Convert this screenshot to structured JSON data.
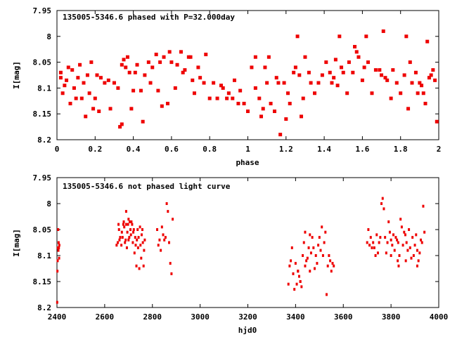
{
  "colors": {
    "points": "#ee0000",
    "axes": "#000000"
  },
  "chart_data": [
    {
      "type": "scatter",
      "title": "135005-5346.6 phased with P=32.000day",
      "xlabel": "phase",
      "ylabel": "I[mag]",
      "xlim": [
        0,
        2
      ],
      "ylim": [
        8.2,
        7.95
      ],
      "y_inverted": true,
      "grid": false,
      "x_ticks": [
        "0",
        "0.2",
        "0.4",
        "0.6",
        "0.8",
        "1",
        "1.2",
        "1.4",
        "1.6",
        "1.8",
        "2"
      ],
      "y_ticks": [
        "7.95",
        "8",
        "8.05",
        "8.1",
        "8.15",
        "8.2"
      ],
      "points": [
        [
          0.02,
          8.07
        ],
        [
          0.02,
          8.08
        ],
        [
          0.03,
          8.11
        ],
        [
          0.04,
          8.095
        ],
        [
          0.05,
          8.085
        ],
        [
          0.06,
          8.06
        ],
        [
          0.07,
          8.13
        ],
        [
          0.08,
          8.065
        ],
        [
          0.09,
          8.1
        ],
        [
          0.1,
          8.12
        ],
        [
          0.11,
          8.08
        ],
        [
          0.12,
          8.055
        ],
        [
          0.13,
          8.12
        ],
        [
          0.14,
          8.09
        ],
        [
          0.15,
          8.155
        ],
        [
          0.16,
          8.075
        ],
        [
          0.17,
          8.11
        ],
        [
          0.18,
          8.05
        ],
        [
          0.19,
          8.14
        ],
        [
          0.2,
          8.12
        ],
        [
          0.21,
          8.075
        ],
        [
          0.22,
          8.145
        ],
        [
          0.23,
          8.08
        ],
        [
          0.25,
          8.09
        ],
        [
          0.27,
          8.085
        ],
        [
          0.28,
          8.14
        ],
        [
          0.3,
          8.09
        ],
        [
          0.32,
          8.1
        ],
        [
          0.33,
          8.175
        ],
        [
          0.34,
          8.055
        ],
        [
          0.34,
          8.17
        ],
        [
          0.35,
          8.045
        ],
        [
          0.36,
          8.06
        ],
        [
          0.37,
          8.04
        ],
        [
          0.38,
          8.07
        ],
        [
          0.39,
          8.14
        ],
        [
          0.4,
          8.105
        ],
        [
          0.41,
          8.07
        ],
        [
          0.42,
          8.055
        ],
        [
          0.44,
          8.105
        ],
        [
          0.45,
          8.165
        ],
        [
          0.46,
          8.075
        ],
        [
          0.48,
          8.05
        ],
        [
          0.49,
          8.09
        ],
        [
          0.5,
          8.06
        ],
        [
          0.52,
          8.035
        ],
        [
          0.53,
          8.105
        ],
        [
          0.54,
          8.05
        ],
        [
          0.55,
          8.135
        ],
        [
          0.56,
          8.04
        ],
        [
          0.58,
          8.13
        ],
        [
          0.59,
          8.03
        ],
        [
          0.6,
          8.05
        ],
        [
          0.62,
          8.1
        ],
        [
          0.63,
          8.055
        ],
        [
          0.65,
          8.03
        ],
        [
          0.66,
          8.07
        ],
        [
          0.67,
          8.065
        ],
        [
          0.69,
          8.04
        ],
        [
          0.7,
          8.04
        ],
        [
          0.71,
          8.085
        ],
        [
          0.72,
          8.11
        ],
        [
          0.74,
          8.06
        ],
        [
          0.75,
          8.08
        ],
        [
          0.77,
          8.09
        ],
        [
          0.78,
          8.035
        ],
        [
          0.8,
          8.12
        ],
        [
          0.82,
          8.09
        ],
        [
          0.84,
          8.12
        ],
        [
          0.86,
          8.095
        ],
        [
          0.87,
          8.1
        ],
        [
          0.89,
          8.12
        ],
        [
          0.9,
          8.11
        ],
        [
          0.92,
          8.12
        ],
        [
          0.93,
          8.085
        ],
        [
          0.95,
          8.13
        ],
        [
          0.96,
          8.105
        ],
        [
          0.98,
          8.13
        ],
        [
          1.0,
          8.145
        ],
        [
          1.02,
          8.06
        ],
        [
          1.04,
          8.1
        ],
        [
          1.04,
          8.04
        ],
        [
          1.06,
          8.12
        ],
        [
          1.07,
          8.155
        ],
        [
          1.08,
          8.14
        ],
        [
          1.09,
          8.06
        ],
        [
          1.1,
          8.09
        ],
        [
          1.11,
          8.04
        ],
        [
          1.12,
          8.13
        ],
        [
          1.14,
          8.145
        ],
        [
          1.15,
          8.08
        ],
        [
          1.16,
          8.09
        ],
        [
          1.17,
          8.19
        ],
        [
          1.19,
          8.09
        ],
        [
          1.2,
          8.16
        ],
        [
          1.21,
          8.11
        ],
        [
          1.22,
          8.13
        ],
        [
          1.24,
          8.07
        ],
        [
          1.25,
          8.06
        ],
        [
          1.26,
          8.0
        ],
        [
          1.27,
          8.075
        ],
        [
          1.28,
          8.155
        ],
        [
          1.29,
          8.12
        ],
        [
          1.3,
          8.04
        ],
        [
          1.32,
          8.07
        ],
        [
          1.33,
          8.09
        ],
        [
          1.35,
          8.11
        ],
        [
          1.37,
          8.09
        ],
        [
          1.39,
          8.075
        ],
        [
          1.41,
          8.05
        ],
        [
          1.43,
          8.07
        ],
        [
          1.44,
          8.09
        ],
        [
          1.45,
          8.08
        ],
        [
          1.46,
          8.045
        ],
        [
          1.47,
          8.095
        ],
        [
          1.48,
          8.0
        ],
        [
          1.49,
          8.06
        ],
        [
          1.5,
          8.07
        ],
        [
          1.52,
          8.11
        ],
        [
          1.53,
          8.05
        ],
        [
          1.55,
          8.07
        ],
        [
          1.56,
          8.02
        ],
        [
          1.57,
          8.03
        ],
        [
          1.58,
          8.04
        ],
        [
          1.6,
          8.085
        ],
        [
          1.61,
          8.06
        ],
        [
          1.62,
          8.0
        ],
        [
          1.63,
          8.05
        ],
        [
          1.65,
          8.11
        ],
        [
          1.67,
          8.065
        ],
        [
          1.69,
          8.065
        ],
        [
          1.7,
          8.075
        ],
        [
          1.71,
          7.99
        ],
        [
          1.72,
          8.08
        ],
        [
          1.73,
          8.085
        ],
        [
          1.75,
          8.12
        ],
        [
          1.76,
          8.065
        ],
        [
          1.78,
          8.09
        ],
        [
          1.8,
          8.11
        ],
        [
          1.82,
          8.075
        ],
        [
          1.83,
          8.0
        ],
        [
          1.84,
          8.14
        ],
        [
          1.85,
          8.05
        ],
        [
          1.86,
          8.09
        ],
        [
          1.88,
          8.07
        ],
        [
          1.89,
          8.11
        ],
        [
          1.9,
          8.09
        ],
        [
          1.91,
          8.095
        ],
        [
          1.92,
          8.11
        ],
        [
          1.93,
          8.13
        ],
        [
          1.94,
          8.01
        ],
        [
          1.95,
          8.08
        ],
        [
          1.96,
          8.075
        ],
        [
          1.97,
          8.065
        ],
        [
          1.98,
          8.085
        ],
        [
          1.99,
          8.165
        ]
      ]
    },
    {
      "type": "scatter",
      "title": "135005-5346.6 not phased light curve",
      "xlabel": "hjd0",
      "ylabel": "I[mag]",
      "xlim": [
        2400,
        4000
      ],
      "ylim": [
        8.2,
        7.95
      ],
      "y_inverted": true,
      "grid": false,
      "x_ticks": [
        "2400",
        "2600",
        "2800",
        "3000",
        "3200",
        "3400",
        "3600",
        "3800",
        "4000"
      ],
      "y_ticks": [
        "7.95",
        "8",
        "8.05",
        "8.1",
        "8.15",
        "8.2"
      ],
      "points": [
        [
          2401,
          8.19
        ],
        [
          2402,
          8.13
        ],
        [
          2403,
          8.11
        ],
        [
          2404,
          8.085
        ],
        [
          2405,
          8.05
        ],
        [
          2406,
          8.09
        ],
        [
          2407,
          8.075
        ],
        [
          2408,
          8.085
        ],
        [
          2409,
          8.105
        ],
        [
          2410,
          8.08
        ],
        [
          2650,
          8.08
        ],
        [
          2655,
          8.075
        ],
        [
          2658,
          8.04
        ],
        [
          2660,
          8.05
        ],
        [
          2662,
          8.07
        ],
        [
          2665,
          8.065
        ],
        [
          2670,
          8.08
        ],
        [
          2672,
          8.055
        ],
        [
          2675,
          8.065
        ],
        [
          2678,
          8.04
        ],
        [
          2680,
          8.035
        ],
        [
          2682,
          8.045
        ],
        [
          2685,
          8.075
        ],
        [
          2688,
          8.07
        ],
        [
          2690,
          8.04
        ],
        [
          2693,
          8.085
        ],
        [
          2695,
          8.055
        ],
        [
          2698,
          8.04
        ],
        [
          2700,
          8.07
        ],
        [
          2703,
          8.065
        ],
        [
          2705,
          8.035
        ],
        [
          2708,
          8.05
        ],
        [
          2710,
          8.06
        ],
        [
          2712,
          8.035
        ],
        [
          2715,
          8.04
        ],
        [
          2718,
          8.075
        ],
        [
          2720,
          8.055
        ],
        [
          2722,
          8.05
        ],
        [
          2725,
          8.095
        ],
        [
          2728,
          8.065
        ],
        [
          2730,
          8.08
        ],
        [
          2733,
          8.12
        ],
        [
          2735,
          8.07
        ],
        [
          2738,
          8.05
        ],
        [
          2740,
          8.085
        ],
        [
          2742,
          8.065
        ],
        [
          2745,
          8.125
        ],
        [
          2748,
          8.045
        ],
        [
          2750,
          8.08
        ],
        [
          2753,
          8.105
        ],
        [
          2755,
          8.06
        ],
        [
          2758,
          8.05
        ],
        [
          2760,
          8.075
        ],
        [
          2763,
          8.12
        ],
        [
          2765,
          8.09
        ],
        [
          2768,
          8.07
        ],
        [
          2690,
          8.015
        ],
        [
          2700,
          8.03
        ],
        [
          2820,
          8.05
        ],
        [
          2825,
          8.08
        ],
        [
          2830,
          8.07
        ],
        [
          2835,
          8.09
        ],
        [
          2840,
          8.045
        ],
        [
          2845,
          8.06
        ],
        [
          2850,
          8.07
        ],
        [
          2855,
          8.065
        ],
        [
          2860,
          8.0
        ],
        [
          2865,
          8.015
        ],
        [
          2870,
          8.075
        ],
        [
          2875,
          8.115
        ],
        [
          2880,
          8.135
        ],
        [
          2885,
          8.03
        ],
        [
          3370,
          8.155
        ],
        [
          3375,
          8.12
        ],
        [
          3380,
          8.11
        ],
        [
          3385,
          8.085
        ],
        [
          3390,
          8.135
        ],
        [
          3395,
          8.165
        ],
        [
          3400,
          8.115
        ],
        [
          3405,
          8.155
        ],
        [
          3410,
          8.13
        ],
        [
          3415,
          8.14
        ],
        [
          3420,
          8.15
        ],
        [
          3425,
          8.16
        ],
        [
          3430,
          8.1
        ],
        [
          3435,
          8.075
        ],
        [
          3440,
          8.055
        ],
        [
          3445,
          8.11
        ],
        [
          3450,
          8.105
        ],
        [
          3455,
          8.085
        ],
        [
          3460,
          8.13
        ],
        [
          3465,
          8.095
        ],
        [
          3470,
          8.065
        ],
        [
          3475,
          8.085
        ],
        [
          3480,
          8.125
        ],
        [
          3485,
          8.1
        ],
        [
          3490,
          8.115
        ],
        [
          3495,
          8.08
        ],
        [
          3500,
          8.065
        ],
        [
          3505,
          8.09
        ],
        [
          3510,
          8.045
        ],
        [
          3515,
          8.1
        ],
        [
          3520,
          8.075
        ],
        [
          3525,
          8.055
        ],
        [
          3530,
          8.175
        ],
        [
          3535,
          8.12
        ],
        [
          3540,
          8.1
        ],
        [
          3545,
          8.11
        ],
        [
          3550,
          8.13
        ],
        [
          3555,
          8.115
        ],
        [
          3560,
          8.12
        ],
        [
          3410,
          8.13
        ],
        [
          3420,
          8.15
        ],
        [
          3440,
          8.12
        ],
        [
          3460,
          8.06
        ],
        [
          3700,
          8.075
        ],
        [
          3705,
          8.05
        ],
        [
          3710,
          8.08
        ],
        [
          3715,
          8.065
        ],
        [
          3720,
          8.085
        ],
        [
          3725,
          8.075
        ],
        [
          3730,
          8.085
        ],
        [
          3735,
          8.1
        ],
        [
          3740,
          8.06
        ],
        [
          3745,
          8.095
        ],
        [
          3750,
          8.075
        ],
        [
          3755,
          8.065
        ],
        [
          3760,
          8.0
        ],
        [
          3765,
          7.99
        ],
        [
          3770,
          8.01
        ],
        [
          3775,
          8.065
        ],
        [
          3780,
          8.095
        ],
        [
          3785,
          8.075
        ],
        [
          3790,
          8.035
        ],
        [
          3795,
          8.055
        ],
        [
          3800,
          8.07
        ],
        [
          3805,
          8.08
        ],
        [
          3810,
          8.06
        ],
        [
          3815,
          8.09
        ],
        [
          3820,
          8.065
        ],
        [
          3825,
          8.07
        ],
        [
          3830,
          8.075
        ],
        [
          3835,
          8.1
        ],
        [
          3840,
          8.03
        ],
        [
          3845,
          8.045
        ],
        [
          3850,
          8.08
        ],
        [
          3855,
          8.055
        ],
        [
          3860,
          8.06
        ],
        [
          3865,
          8.075
        ],
        [
          3870,
          8.09
        ],
        [
          3875,
          8.05
        ],
        [
          3880,
          8.085
        ],
        [
          3885,
          8.105
        ],
        [
          3890,
          8.065
        ],
        [
          3895,
          8.1
        ],
        [
          3900,
          8.08
        ],
        [
          3905,
          8.06
        ],
        [
          3910,
          8.09
        ],
        [
          3915,
          8.11
        ],
        [
          3920,
          8.095
        ],
        [
          3925,
          8.07
        ],
        [
          3930,
          8.075
        ],
        [
          3935,
          8.005
        ],
        [
          3940,
          8.055
        ],
        [
          3828,
          8.11
        ],
        [
          3832,
          8.12
        ],
        [
          3862,
          8.11
        ],
        [
          3910,
          8.12
        ],
        [
          3800,
          8.1
        ]
      ]
    }
  ]
}
